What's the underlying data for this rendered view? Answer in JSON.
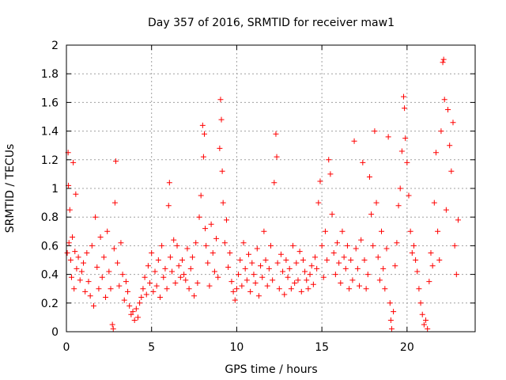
{
  "chart_data": {
    "type": "scatter",
    "title": "Day 357 of 2016, SRMTID for receiver maw1",
    "xlabel": "GPS time / hours",
    "ylabel": "SRMTID / TECUs",
    "xlim": [
      0,
      24
    ],
    "ylim": [
      0,
      2
    ],
    "xticks": [
      0,
      5,
      10,
      15,
      20
    ],
    "xtick_labels": [
      "0",
      "5",
      "10",
      "15",
      "20"
    ],
    "yticks": [
      0,
      0.2,
      0.4,
      0.6,
      0.8,
      1,
      1.2,
      1.4,
      1.6,
      1.8,
      2
    ],
    "ytick_labels": [
      "0",
      "0.2",
      "0.4",
      "0.6",
      "0.8",
      "1",
      "1.2",
      "1.4",
      "1.6",
      "1.8",
      "2"
    ],
    "grid": true,
    "marker": "plus",
    "series": [
      {
        "name": "maw1",
        "color": "#ff0000",
        "points": [
          [
            0.05,
            0.55
          ],
          [
            0.1,
            1.25
          ],
          [
            0.12,
            1.02
          ],
          [
            0.15,
            0.62
          ],
          [
            0.2,
            0.85
          ],
          [
            0.25,
            0.5
          ],
          [
            0.3,
            0.38
          ],
          [
            0.35,
            0.66
          ],
          [
            0.4,
            1.18
          ],
          [
            0.45,
            0.3
          ],
          [
            0.5,
            0.56
          ],
          [
            0.55,
            0.96
          ],
          [
            0.6,
            0.44
          ],
          [
            0.7,
            0.52
          ],
          [
            0.8,
            0.36
          ],
          [
            0.9,
            0.42
          ],
          [
            1.0,
            0.48
          ],
          [
            1.1,
            0.28
          ],
          [
            1.2,
            0.55
          ],
          [
            1.3,
            0.35
          ],
          [
            1.4,
            0.25
          ],
          [
            1.5,
            0.6
          ],
          [
            1.6,
            0.18
          ],
          [
            1.7,
            0.8
          ],
          [
            1.8,
            0.45
          ],
          [
            1.9,
            0.3
          ],
          [
            2.0,
            0.66
          ],
          [
            2.1,
            0.38
          ],
          [
            2.2,
            0.52
          ],
          [
            2.3,
            0.24
          ],
          [
            2.4,
            0.7
          ],
          [
            2.5,
            0.42
          ],
          [
            2.6,
            0.3
          ],
          [
            2.7,
            0.05
          ],
          [
            2.75,
            0.02
          ],
          [
            2.8,
            0.58
          ],
          [
            2.85,
            0.9
          ],
          [
            2.9,
            1.19
          ],
          [
            3.0,
            0.48
          ],
          [
            3.1,
            0.32
          ],
          [
            3.2,
            0.62
          ],
          [
            3.3,
            0.4
          ],
          [
            3.4,
            0.22
          ],
          [
            3.5,
            0.35
          ],
          [
            3.6,
            0.28
          ],
          [
            3.7,
            0.18
          ],
          [
            3.8,
            0.12
          ],
          [
            3.9,
            0.14
          ],
          [
            4.0,
            0.08
          ],
          [
            4.1,
            0.16
          ],
          [
            4.2,
            0.1
          ],
          [
            4.3,
            0.2
          ],
          [
            4.4,
            0.24
          ],
          [
            4.5,
            0.3
          ],
          [
            4.6,
            0.38
          ],
          [
            4.7,
            0.26
          ],
          [
            4.8,
            0.46
          ],
          [
            4.9,
            0.34
          ],
          [
            5.0,
            0.55
          ],
          [
            5.1,
            0.28
          ],
          [
            5.2,
            0.42
          ],
          [
            5.3,
            0.32
          ],
          [
            5.4,
            0.5
          ],
          [
            5.5,
            0.24
          ],
          [
            5.6,
            0.6
          ],
          [
            5.7,
            0.38
          ],
          [
            5.8,
            0.44
          ],
          [
            5.9,
            0.3
          ],
          [
            6.0,
            0.88
          ],
          [
            6.05,
            1.04
          ],
          [
            6.1,
            0.52
          ],
          [
            6.2,
            0.42
          ],
          [
            6.3,
            0.64
          ],
          [
            6.4,
            0.34
          ],
          [
            6.5,
            0.6
          ],
          [
            6.6,
            0.46
          ],
          [
            6.7,
            0.38
          ],
          [
            6.8,
            0.5
          ],
          [
            6.9,
            0.4
          ],
          [
            7.0,
            0.36
          ],
          [
            7.1,
            0.58
          ],
          [
            7.2,
            0.3
          ],
          [
            7.3,
            0.44
          ],
          [
            7.4,
            0.52
          ],
          [
            7.5,
            0.25
          ],
          [
            7.6,
            0.62
          ],
          [
            7.7,
            0.34
          ],
          [
            7.8,
            0.8
          ],
          [
            7.9,
            0.95
          ],
          [
            8.0,
            1.44
          ],
          [
            8.05,
            1.22
          ],
          [
            8.1,
            1.38
          ],
          [
            8.15,
            0.72
          ],
          [
            8.2,
            0.6
          ],
          [
            8.3,
            0.48
          ],
          [
            8.4,
            0.32
          ],
          [
            8.5,
            0.75
          ],
          [
            8.6,
            0.55
          ],
          [
            8.7,
            0.42
          ],
          [
            8.8,
            0.65
          ],
          [
            8.9,
            0.38
          ],
          [
            9.0,
            1.28
          ],
          [
            9.05,
            1.62
          ],
          [
            9.1,
            1.48
          ],
          [
            9.15,
            1.12
          ],
          [
            9.2,
            0.9
          ],
          [
            9.3,
            0.62
          ],
          [
            9.4,
            0.78
          ],
          [
            9.5,
            0.45
          ],
          [
            9.6,
            0.55
          ],
          [
            9.7,
            0.35
          ],
          [
            9.8,
            0.28
          ],
          [
            9.9,
            0.22
          ],
          [
            10.0,
            0.3
          ],
          [
            10.1,
            0.4
          ],
          [
            10.2,
            0.5
          ],
          [
            10.3,
            0.32
          ],
          [
            10.4,
            0.62
          ],
          [
            10.5,
            0.44
          ],
          [
            10.6,
            0.36
          ],
          [
            10.7,
            0.54
          ],
          [
            10.8,
            0.28
          ],
          [
            10.9,
            0.48
          ],
          [
            11.0,
            0.4
          ],
          [
            11.1,
            0.34
          ],
          [
            11.2,
            0.58
          ],
          [
            11.3,
            0.25
          ],
          [
            11.4,
            0.46
          ],
          [
            11.5,
            0.38
          ],
          [
            11.6,
            0.7
          ],
          [
            11.7,
            0.5
          ],
          [
            11.8,
            0.32
          ],
          [
            11.9,
            0.44
          ],
          [
            12.0,
            0.6
          ],
          [
            12.1,
            0.36
          ],
          [
            12.2,
            1.04
          ],
          [
            12.3,
            1.38
          ],
          [
            12.35,
            1.22
          ],
          [
            12.4,
            0.48
          ],
          [
            12.5,
            0.3
          ],
          [
            12.6,
            0.54
          ],
          [
            12.7,
            0.42
          ],
          [
            12.8,
            0.26
          ],
          [
            12.9,
            0.5
          ],
          [
            13.0,
            0.38
          ],
          [
            13.1,
            0.44
          ],
          [
            13.2,
            0.3
          ],
          [
            13.3,
            0.6
          ],
          [
            13.4,
            0.34
          ],
          [
            13.5,
            0.48
          ],
          [
            13.6,
            0.36
          ],
          [
            13.7,
            0.56
          ],
          [
            13.8,
            0.28
          ],
          [
            13.9,
            0.5
          ],
          [
            14.0,
            0.42
          ],
          [
            14.1,
            0.36
          ],
          [
            14.2,
            0.3
          ],
          [
            14.3,
            0.4
          ],
          [
            14.4,
            0.46
          ],
          [
            14.5,
            0.33
          ],
          [
            14.6,
            0.52
          ],
          [
            14.7,
            0.44
          ],
          [
            14.8,
            0.9
          ],
          [
            14.9,
            1.05
          ],
          [
            15.0,
            0.6
          ],
          [
            15.1,
            0.38
          ],
          [
            15.2,
            0.7
          ],
          [
            15.3,
            0.5
          ],
          [
            15.4,
            1.2
          ],
          [
            15.5,
            1.1
          ],
          [
            15.6,
            0.82
          ],
          [
            15.7,
            0.55
          ],
          [
            15.8,
            0.4
          ],
          [
            15.9,
            0.62
          ],
          [
            16.0,
            0.48
          ],
          [
            16.1,
            0.34
          ],
          [
            16.2,
            0.7
          ],
          [
            16.3,
            0.52
          ],
          [
            16.4,
            0.44
          ],
          [
            16.5,
            0.6
          ],
          [
            16.6,
            0.3
          ],
          [
            16.7,
            0.5
          ],
          [
            16.8,
            0.36
          ],
          [
            16.9,
            1.33
          ],
          [
            17.0,
            0.58
          ],
          [
            17.1,
            0.44
          ],
          [
            17.2,
            0.32
          ],
          [
            17.3,
            0.64
          ],
          [
            17.4,
            1.18
          ],
          [
            17.5,
            0.5
          ],
          [
            17.6,
            0.3
          ],
          [
            17.7,
            0.4
          ],
          [
            17.8,
            1.08
          ],
          [
            17.9,
            0.82
          ],
          [
            18.0,
            0.6
          ],
          [
            18.1,
            1.4
          ],
          [
            18.2,
            0.9
          ],
          [
            18.3,
            0.52
          ],
          [
            18.4,
            0.36
          ],
          [
            18.5,
            0.7
          ],
          [
            18.6,
            0.44
          ],
          [
            18.7,
            0.3
          ],
          [
            18.8,
            0.58
          ],
          [
            18.9,
            1.36
          ],
          [
            19.0,
            0.2
          ],
          [
            19.05,
            0.08
          ],
          [
            19.1,
            0.02
          ],
          [
            19.2,
            0.14
          ],
          [
            19.3,
            0.46
          ],
          [
            19.4,
            0.62
          ],
          [
            19.5,
            0.88
          ],
          [
            19.6,
            1.0
          ],
          [
            19.7,
            1.26
          ],
          [
            19.8,
            1.64
          ],
          [
            19.85,
            1.56
          ],
          [
            19.9,
            1.35
          ],
          [
            20.0,
            1.18
          ],
          [
            20.1,
            0.95
          ],
          [
            20.2,
            0.7
          ],
          [
            20.3,
            0.55
          ],
          [
            20.4,
            0.6
          ],
          [
            20.5,
            0.5
          ],
          [
            20.6,
            0.42
          ],
          [
            20.7,
            0.3
          ],
          [
            20.8,
            0.2
          ],
          [
            20.9,
            0.12
          ],
          [
            21.0,
            0.05
          ],
          [
            21.1,
            0.08
          ],
          [
            21.2,
            0.02
          ],
          [
            21.3,
            0.35
          ],
          [
            21.4,
            0.55
          ],
          [
            21.5,
            0.46
          ],
          [
            21.6,
            0.9
          ],
          [
            21.7,
            1.25
          ],
          [
            21.8,
            0.7
          ],
          [
            21.9,
            0.5
          ],
          [
            22.0,
            1.4
          ],
          [
            22.1,
            1.88
          ],
          [
            22.15,
            1.9
          ],
          [
            22.2,
            1.62
          ],
          [
            22.3,
            0.85
          ],
          [
            22.4,
            1.55
          ],
          [
            22.5,
            1.3
          ],
          [
            22.6,
            1.12
          ],
          [
            22.7,
            1.46
          ],
          [
            22.8,
            0.6
          ],
          [
            22.9,
            0.4
          ],
          [
            23.0,
            0.78
          ]
        ]
      }
    ]
  }
}
